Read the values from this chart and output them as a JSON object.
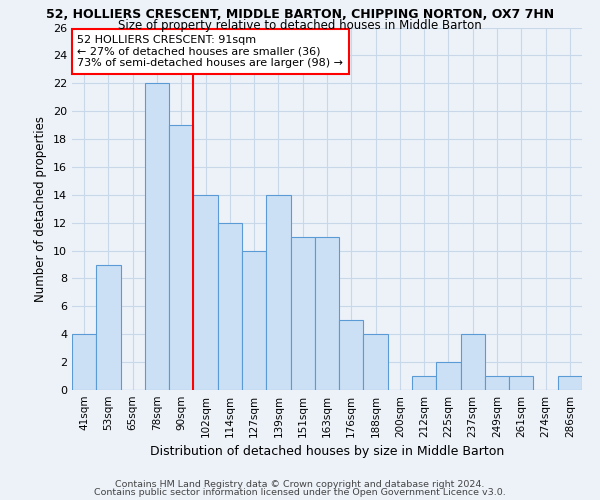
{
  "title1": "52, HOLLIERS CRESCENT, MIDDLE BARTON, CHIPPING NORTON, OX7 7HN",
  "title2": "Size of property relative to detached houses in Middle Barton",
  "xlabel": "Distribution of detached houses by size in Middle Barton",
  "ylabel": "Number of detached properties",
  "bin_labels": [
    "41sqm",
    "53sqm",
    "65sqm",
    "78sqm",
    "90sqm",
    "102sqm",
    "114sqm",
    "127sqm",
    "139sqm",
    "151sqm",
    "163sqm",
    "176sqm",
    "188sqm",
    "200sqm",
    "212sqm",
    "225sqm",
    "237sqm",
    "249sqm",
    "261sqm",
    "274sqm",
    "286sqm"
  ],
  "counts": [
    4,
    9,
    0,
    22,
    19,
    14,
    12,
    10,
    14,
    11,
    11,
    5,
    4,
    0,
    1,
    2,
    4,
    1,
    1,
    0,
    1
  ],
  "bar_color": "#cce0f5",
  "bar_edge_color": "#5b9bd5",
  "red_line_index": 4,
  "annotation_text": "52 HOLLIERS CRESCENT: 91sqm\n← 27% of detached houses are smaller (36)\n73% of semi-detached houses are larger (98) →",
  "annotation_box_color": "white",
  "annotation_box_edge_color": "red",
  "ylim": [
    0,
    26
  ],
  "yticks": [
    0,
    2,
    4,
    6,
    8,
    10,
    12,
    14,
    16,
    18,
    20,
    22,
    24,
    26
  ],
  "grid_color": "#c8d8e8",
  "footer1": "Contains HM Land Registry data © Crown copyright and database right 2024.",
  "footer2": "Contains public sector information licensed under the Open Government Licence v3.0.",
  "background_color": "#edf2f9"
}
